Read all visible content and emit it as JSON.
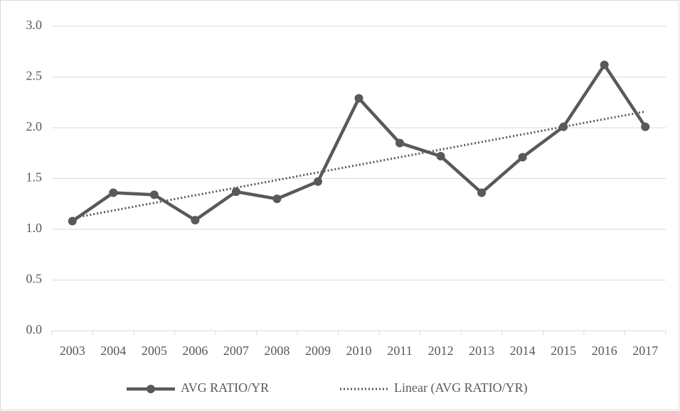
{
  "chart_data": {
    "type": "line",
    "categories": [
      "2003",
      "2004",
      "2005",
      "2006",
      "2007",
      "2008",
      "2009",
      "2010",
      "2011",
      "2012",
      "2013",
      "2014",
      "2015",
      "2016",
      "2017"
    ],
    "series": [
      {
        "name": "AVG RATIO/YR",
        "color": "#595959",
        "style": "solid-markers",
        "values": [
          1.08,
          1.36,
          1.34,
          1.09,
          1.37,
          1.3,
          1.47,
          2.29,
          1.85,
          1.72,
          1.36,
          1.71,
          2.01,
          2.62,
          2.01
        ]
      },
      {
        "name": "Linear (AVG RATIO/YR)",
        "color": "#595959",
        "style": "dotted",
        "values": [
          1.11,
          1.185,
          1.26,
          1.335,
          1.41,
          1.485,
          1.56,
          1.635,
          1.71,
          1.785,
          1.86,
          1.935,
          2.01,
          2.085,
          2.16
        ]
      }
    ],
    "ylim": [
      0,
      3
    ],
    "yticks": [
      {
        "value": 0,
        "label": "0.0"
      },
      {
        "value": 0.5,
        "label": "0.5"
      },
      {
        "value": 1,
        "label": "1.0"
      },
      {
        "value": 1.5,
        "label": "1.5"
      },
      {
        "value": 2,
        "label": "2.0"
      },
      {
        "value": 2.5,
        "label": "2.5"
      },
      {
        "value": 3,
        "label": "3.0"
      }
    ],
    "grid": true,
    "legend": "bottom"
  }
}
